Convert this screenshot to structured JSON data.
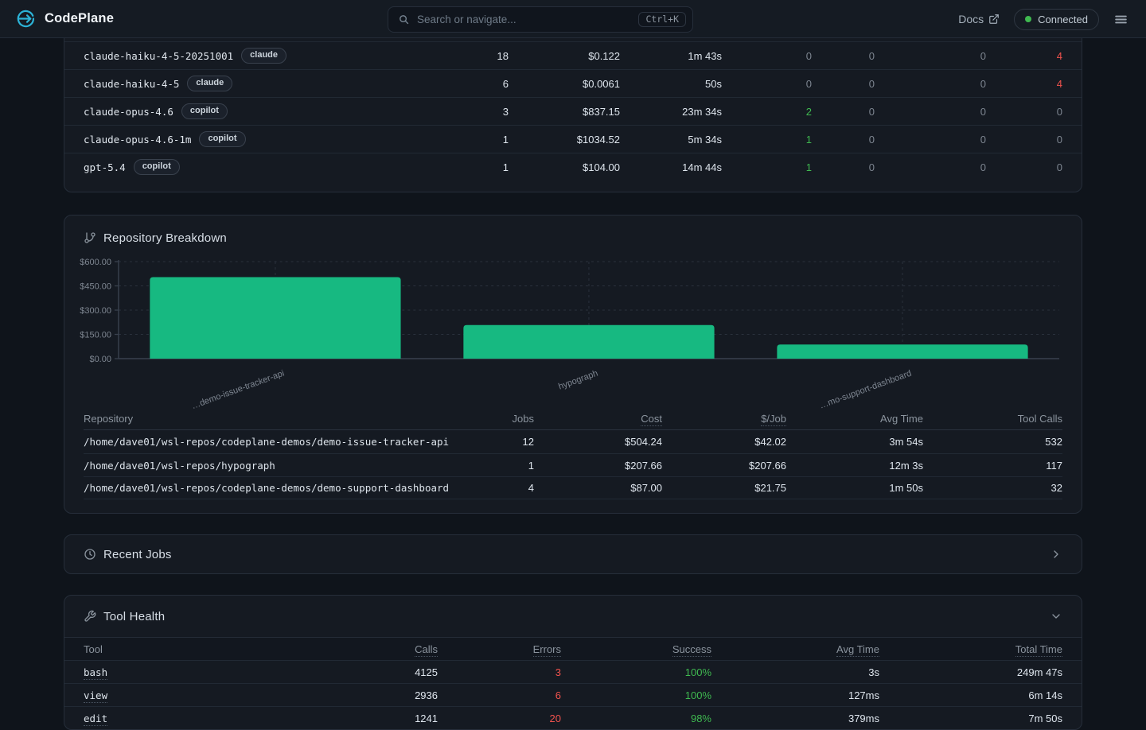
{
  "navbar": {
    "brand": "CodePlane",
    "search_placeholder": "Search or navigate...",
    "search_shortcut": "Ctrl+K",
    "docs_label": "Docs",
    "connection_status": "Connected"
  },
  "models_table": {
    "rows": [
      {
        "name": "claude-haiku-4-5-20251001",
        "badge": "claude",
        "cells": [
          {
            "v": "18"
          },
          {
            "v": "$0.122"
          },
          {
            "v": "1m 43s"
          },
          {
            "v": "0",
            "c": "muted"
          },
          {
            "v": "0",
            "c": "muted"
          },
          {
            "v": "0",
            "c": "muted"
          },
          {
            "v": "4",
            "c": "red"
          }
        ]
      },
      {
        "name": "claude-haiku-4-5",
        "badge": "claude",
        "cells": [
          {
            "v": "6"
          },
          {
            "v": "$0.0061"
          },
          {
            "v": "50s"
          },
          {
            "v": "0",
            "c": "muted"
          },
          {
            "v": "0",
            "c": "muted"
          },
          {
            "v": "0",
            "c": "muted"
          },
          {
            "v": "4",
            "c": "red"
          }
        ]
      },
      {
        "name": "claude-opus-4.6",
        "badge": "copilot",
        "cells": [
          {
            "v": "3"
          },
          {
            "v": "$837.15"
          },
          {
            "v": "23m 34s"
          },
          {
            "v": "2",
            "c": "green"
          },
          {
            "v": "0",
            "c": "muted"
          },
          {
            "v": "0",
            "c": "muted"
          },
          {
            "v": "0",
            "c": "muted"
          }
        ]
      },
      {
        "name": "claude-opus-4.6-1m",
        "badge": "copilot",
        "cells": [
          {
            "v": "1"
          },
          {
            "v": "$1034.52"
          },
          {
            "v": "5m 34s"
          },
          {
            "v": "1",
            "c": "green"
          },
          {
            "v": "0",
            "c": "muted"
          },
          {
            "v": "0",
            "c": "muted"
          },
          {
            "v": "0",
            "c": "muted"
          }
        ]
      },
      {
        "name": "gpt-5.4",
        "badge": "copilot",
        "cells": [
          {
            "v": "1"
          },
          {
            "v": "$104.00"
          },
          {
            "v": "14m 44s"
          },
          {
            "v": "1",
            "c": "green"
          },
          {
            "v": "0",
            "c": "muted"
          },
          {
            "v": "0",
            "c": "muted"
          },
          {
            "v": "0",
            "c": "muted"
          }
        ]
      }
    ]
  },
  "repository_breakdown": {
    "title": "Repository Breakdown",
    "table": {
      "headers": [
        {
          "label": "Repository",
          "dotted": false
        },
        {
          "label": "Jobs",
          "dotted": false
        },
        {
          "label": "Cost",
          "dotted": true
        },
        {
          "label": "$/Job",
          "dotted": true
        },
        {
          "label": "Avg Time",
          "dotted": false
        },
        {
          "label": "Tool Calls",
          "dotted": false
        }
      ],
      "rows": [
        {
          "path": "/home/dave01/wsl-repos/codeplane-demos/demo-issue-tracker-api",
          "jobs": "12",
          "cost": "$504.24",
          "per_job": "$42.02",
          "avg_time": "3m 54s",
          "tool_calls": "532"
        },
        {
          "path": "/home/dave01/wsl-repos/hypograph",
          "jobs": "1",
          "cost": "$207.66",
          "per_job": "$207.66",
          "avg_time": "12m 3s",
          "tool_calls": "117"
        },
        {
          "path": "/home/dave01/wsl-repos/codeplane-demos/demo-support-dashboard",
          "jobs": "4",
          "cost": "$87.00",
          "per_job": "$21.75",
          "avg_time": "1m 50s",
          "tool_calls": "32"
        }
      ]
    }
  },
  "chart_data": {
    "type": "bar",
    "title": "Repository Breakdown",
    "categories": [
      "…demo-issue-tracker-api",
      "hypograph",
      "…mo-support-dashboard"
    ],
    "values": [
      504.24,
      207.66,
      87.0
    ],
    "ylim": [
      0,
      600
    ],
    "ytick_values": [
      0,
      150,
      300,
      450,
      600
    ],
    "ytick_labels": [
      "$0.00",
      "$150.00",
      "$300.00",
      "$450.00",
      "$600.00"
    ],
    "bar_color": "#17b981",
    "grid": "dashed",
    "legend": "none"
  },
  "recent_jobs": {
    "title": "Recent Jobs"
  },
  "tool_health": {
    "title": "Tool Health",
    "headers": [
      {
        "label": "Tool",
        "dotted": false
      },
      {
        "label": "Calls",
        "dotted": true
      },
      {
        "label": "Errors",
        "dotted": true
      },
      {
        "label": "Success",
        "dotted": true
      },
      {
        "label": "Avg Time",
        "dotted": true
      },
      {
        "label": "Total Time",
        "dotted": true
      }
    ],
    "rows": [
      {
        "tool": "bash",
        "calls": "4125",
        "errors": "3",
        "success": "100%",
        "avg_time": "3s",
        "total_time": "249m 47s"
      },
      {
        "tool": "view",
        "calls": "2936",
        "errors": "6",
        "success": "100%",
        "avg_time": "127ms",
        "total_time": "6m 14s"
      },
      {
        "tool": "edit",
        "calls": "1241",
        "errors": "20",
        "success": "98%",
        "avg_time": "379ms",
        "total_time": "7m 50s"
      }
    ]
  },
  "colors": {
    "accent_cyan": "#2cb4d8",
    "bar_green": "#17b981",
    "success_green": "#3fb950",
    "error_red": "#f0524d",
    "page_bg": "#0f141b",
    "panel_bg": "#151a22"
  }
}
